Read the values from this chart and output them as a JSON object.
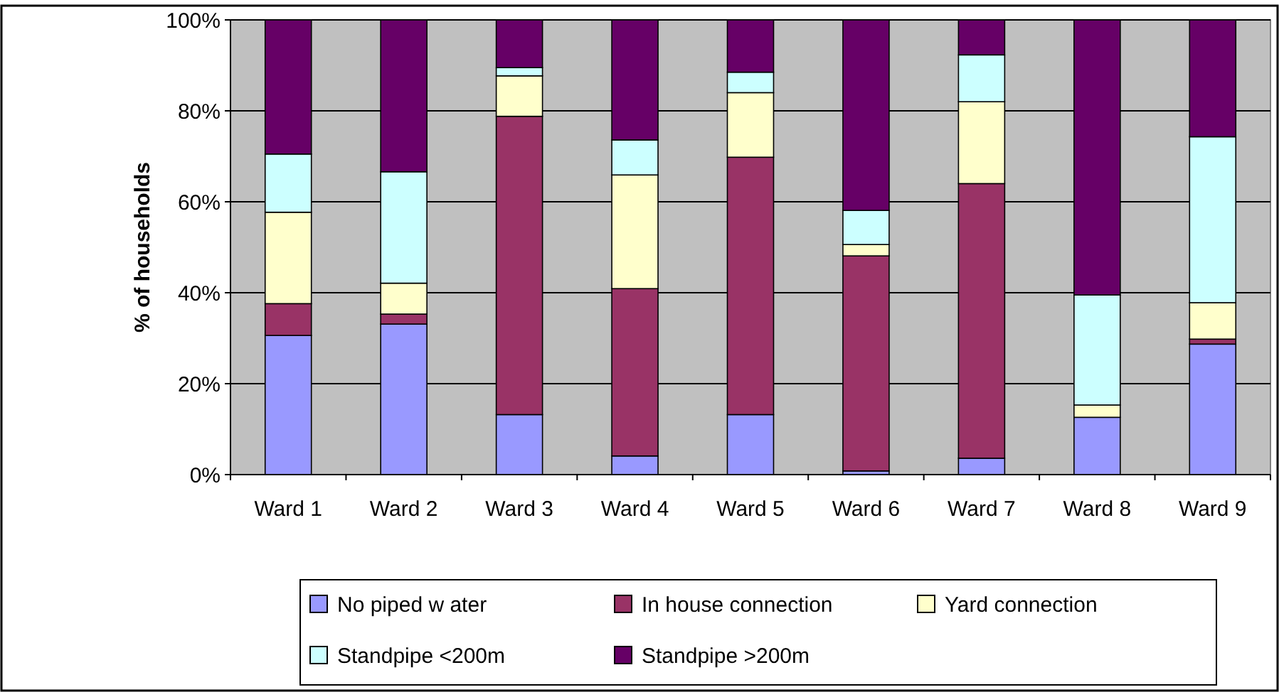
{
  "chart_data": {
    "type": "bar",
    "stacked": true,
    "ylabel": "% of households",
    "categories": [
      "Ward 1",
      "Ward 2",
      "Ward 3",
      "Ward 4",
      "Ward 5",
      "Ward 6",
      "Ward 7",
      "Ward 8",
      "Ward 9"
    ],
    "series": [
      {
        "name": "No piped w ater",
        "color": "#9999ff",
        "values": [
          30.6,
          33.1,
          13.2,
          4.1,
          13.2,
          0.8,
          3.6,
          12.6,
          28.7
        ]
      },
      {
        "name": "In house connection",
        "color": "#993366",
        "values": [
          7.0,
          2.2,
          65.6,
          36.8,
          56.6,
          47.3,
          60.4,
          0,
          1.1
        ]
      },
      {
        "name": "Yard connection",
        "color": "#ffffcc",
        "values": [
          20.1,
          6.8,
          8.9,
          25.0,
          14.2,
          2.5,
          18.0,
          2.7,
          8.0
        ]
      },
      {
        "name": "Standpipe <200m",
        "color": "#ccffff",
        "values": [
          12.8,
          24.5,
          1.8,
          7.7,
          4.5,
          7.5,
          10.3,
          24.2,
          36.5
        ]
      },
      {
        "name": "Standpipe >200m",
        "color": "#660066",
        "values": [
          29.5,
          33.4,
          10.5,
          26.4,
          11.5,
          41.9,
          7.7,
          60.5,
          25.7
        ]
      }
    ],
    "ylim": [
      0,
      100
    ],
    "yticks": [
      {
        "value": 0,
        "label": "0%"
      },
      {
        "value": 20,
        "label": "20%"
      },
      {
        "value": 40,
        "label": "40%"
      },
      {
        "value": 60,
        "label": "60%"
      },
      {
        "value": 80,
        "label": "80%"
      },
      {
        "value": 100,
        "label": "100%"
      }
    ],
    "grid": "y",
    "legend": "bottom"
  }
}
